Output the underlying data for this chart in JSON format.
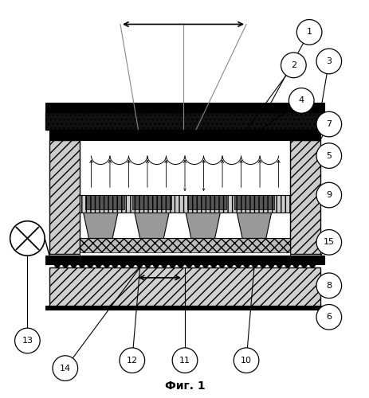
{
  "title": "Фиг. 1",
  "title_fontsize": 10,
  "bg_color": "#ffffff",
  "fig_width": 4.64,
  "fig_height": 5.0,
  "dpi": 100
}
